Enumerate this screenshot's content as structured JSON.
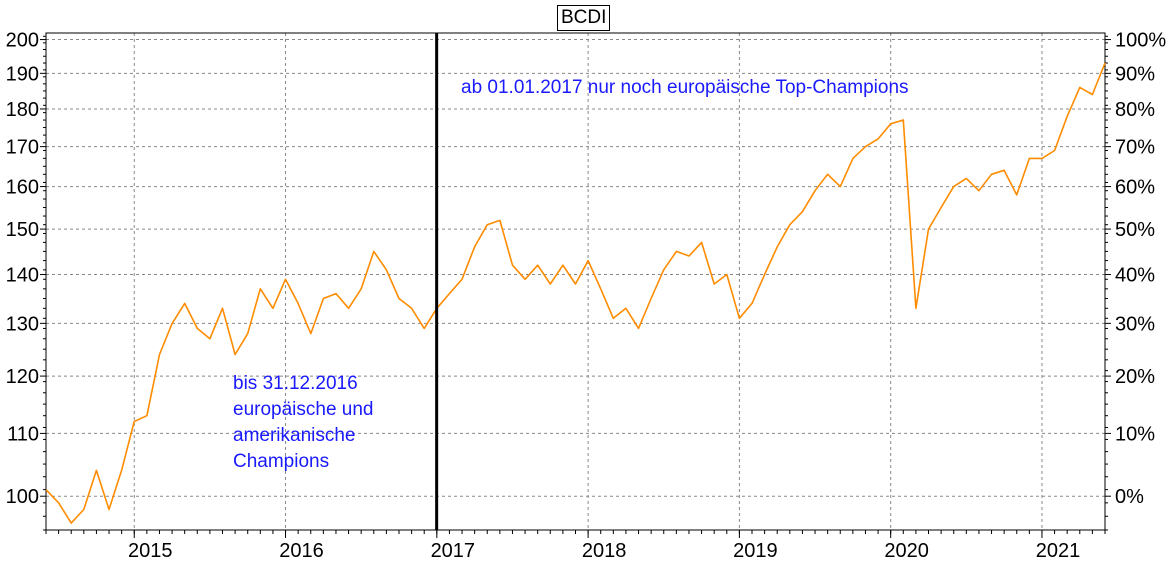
{
  "chart_data": {
    "type": "line",
    "title": "BCDI",
    "x_ticks": [
      "2015",
      "2016",
      "2017",
      "2018",
      "2019",
      "2020",
      "2021"
    ],
    "y_ticks_left": [
      100,
      110,
      120,
      130,
      140,
      150,
      160,
      170,
      180,
      190,
      200
    ],
    "y_ticks_right": [
      "0%",
      "10%",
      "20%",
      "30%",
      "40%",
      "50%",
      "60%",
      "70%",
      "80%",
      "90%",
      "100%"
    ],
    "ylim": [
      95,
      202
    ],
    "y_scale": "log",
    "x_range": [
      "2014-06",
      "2021-06"
    ],
    "grid": true,
    "series_color": "#ff8c00",
    "divider_date": "2016-12-31",
    "annotations": {
      "after": "ab 01.01.2017 nur noch europäische Top-Champions",
      "before": [
        "bis 31.12.2016",
        "europäische und",
        "amerikanische",
        "Champions"
      ]
    },
    "series": [
      {
        "x": [
          "2014-06",
          "2014-07",
          "2014-08",
          "2014-09",
          "2014-10",
          "2014-11",
          "2014-12",
          "2015-01",
          "2015-02",
          "2015-03",
          "2015-04",
          "2015-05",
          "2015-06",
          "2015-07",
          "2015-08",
          "2015-09",
          "2015-10",
          "2015-11",
          "2015-12",
          "2016-01",
          "2016-02",
          "2016-03",
          "2016-04",
          "2016-05",
          "2016-06",
          "2016-07",
          "2016-08",
          "2016-09",
          "2016-10",
          "2016-11",
          "2016-12",
          "2017-01",
          "2017-02",
          "2017-03",
          "2017-04",
          "2017-05",
          "2017-06",
          "2017-07",
          "2017-08",
          "2017-09",
          "2017-10",
          "2017-11",
          "2017-12",
          "2018-01",
          "2018-02",
          "2018-03",
          "2018-04",
          "2018-05",
          "2018-06",
          "2018-07",
          "2018-08",
          "2018-09",
          "2018-10",
          "2018-11",
          "2018-12",
          "2019-01",
          "2019-02",
          "2019-03",
          "2019-04",
          "2019-05",
          "2019-06",
          "2019-07",
          "2019-08",
          "2019-09",
          "2019-10",
          "2019-11",
          "2019-12",
          "2020-01",
          "2020-02",
          "2020-03",
          "2020-04",
          "2020-05",
          "2020-06",
          "2020-07",
          "2020-08",
          "2020-09",
          "2020-10",
          "2020-11",
          "2020-12",
          "2021-01",
          "2021-02",
          "2021-03",
          "2021-04",
          "2021-05",
          "2021-06"
        ],
        "values": [
          101,
          99,
          96,
          98,
          104,
          98,
          104,
          112,
          113,
          124,
          130,
          134,
          129,
          127,
          133,
          124,
          128,
          137,
          133,
          139,
          134,
          128,
          135,
          136,
          133,
          137,
          145,
          141,
          135,
          133,
          129,
          133,
          136,
          139,
          146,
          151,
          152,
          142,
          139,
          142,
          138,
          142,
          138,
          143,
          137,
          131,
          133,
          129,
          135,
          141,
          145,
          144,
          147,
          138,
          140,
          131,
          134,
          140,
          146,
          151,
          154,
          159,
          163,
          160,
          167,
          170,
          172,
          176,
          177,
          133,
          150,
          155,
          160,
          162,
          159,
          163,
          164,
          158,
          167,
          167,
          169,
          178,
          186,
          184,
          193
        ]
      }
    ]
  }
}
